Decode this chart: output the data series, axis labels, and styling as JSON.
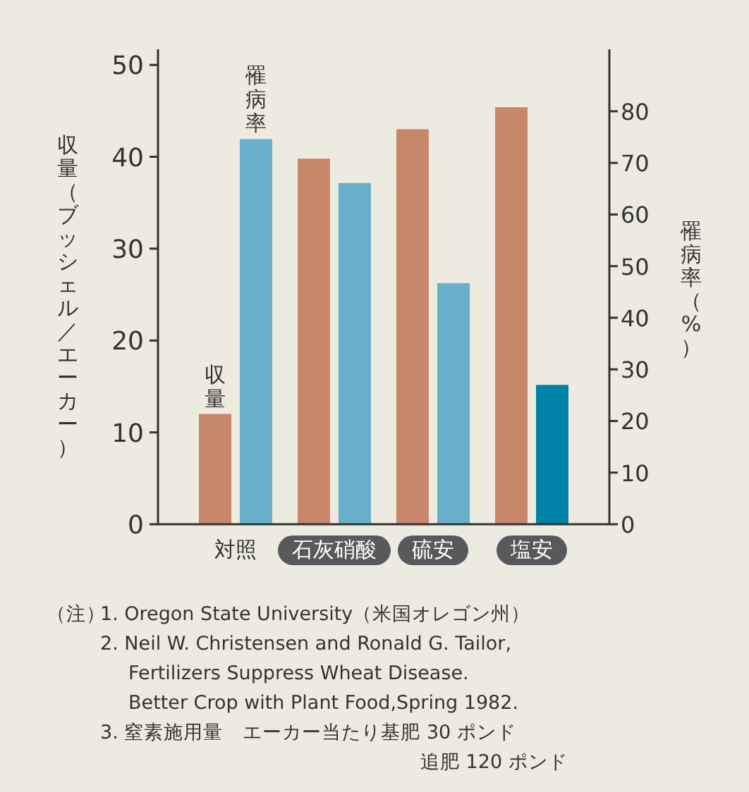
{
  "chart_data": {
    "type": "bar",
    "ylabel": "収量（ブッシェル／エーカー）",
    "y2label": "罹病率（%）",
    "categories": [
      "対照",
      "石灰硝酸",
      "硫安",
      "塩安"
    ],
    "series": [
      {
        "name": "収量",
        "colors": [
          "#c8876b",
          "#c8876b",
          "#c8876b",
          "#c8876b"
        ],
        "values": [
          12,
          39.8,
          43,
          45.4
        ]
      },
      {
        "name": "罹病率",
        "axis": "y2",
        "colors": [
          "#68afcc",
          "#68afcc",
          "#68afcc",
          "#0083a8"
        ],
        "values": [
          74.6,
          66.1,
          46.7,
          27
        ]
      }
    ],
    "ylim": [
      0,
      51.7
    ],
    "yticks": [
      0,
      10,
      20,
      30,
      40,
      50
    ],
    "y2lim": [
      0,
      92
    ],
    "y2ticks": [
      0,
      10,
      20,
      30,
      40,
      50,
      60,
      70,
      80
    ],
    "grid": false,
    "annotations": [
      "（注）",
      "1. Oregon State University（米国オレゴン州）",
      "2. Neil W. Christensen and Ronald G. Tailor,\nFertilizers Suppress Wheat Disease.\nBetter Crop with Plant Food,Spring 1982.",
      "3. 窒素施用量　エーカー当たり基肥 30 ポンド",
      "追肥 120 ポンド"
    ]
  }
}
